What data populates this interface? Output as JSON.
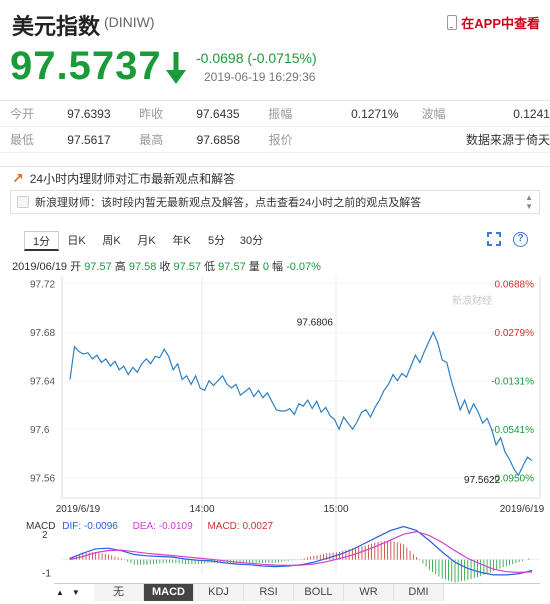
{
  "header": {
    "title": "美元指数",
    "code": "(DINIW)",
    "app_link": "在APP中查看"
  },
  "quote": {
    "price": "97.5737",
    "change": "-0.0698 (-0.0715%)",
    "time": "2019-06-19 16:29:36",
    "color_down": "#1a9b3a"
  },
  "stats": {
    "row1": [
      {
        "label": "今开",
        "value": "97.6393"
      },
      {
        "label": "昨收",
        "value": "97.6435"
      },
      {
        "label": "振幅",
        "value": "0.1271%"
      },
      {
        "label": "波幅",
        "value": "0.1241"
      }
    ],
    "row2": [
      {
        "label": "最低",
        "value": "97.5617"
      },
      {
        "label": "最高",
        "value": "97.6858"
      },
      {
        "label": "报价",
        "value": "数据来源于倚天"
      }
    ]
  },
  "news": {
    "heading": "24小时内理财师对汇市最新观点和解答",
    "message": "新浪理财师：该时段内暂无最新观点及解答，点击查看24小时之前的观点及解答"
  },
  "tabs": [
    "1分",
    "日K",
    "周K",
    "月K",
    "年K",
    "5分",
    "30分"
  ],
  "active_tab": "1分",
  "ohlc": {
    "date": "2019/06/19",
    "open_label": "开",
    "open": "97.57",
    "high_label": "高",
    "high": "97.58",
    "close_label": "收",
    "close": "97.57",
    "low_label": "低",
    "low": "97.57",
    "volume_label": "量",
    "volume": "0",
    "amp_label": "幅",
    "amp": "-0.07%"
  },
  "watermark": "新浪财经",
  "chart_data": {
    "type": "line",
    "y_ticks_left": [
      "97.72",
      "97.68",
      "97.64",
      "97.6",
      "97.56"
    ],
    "y_ticks_right": [
      "0.0688%",
      "0.0279%",
      "-0.0131%",
      "-0.0541%",
      "-0.0950%"
    ],
    "x_ticks": [
      "2019/6/19",
      "14:00",
      "15:00",
      "2019/6/19"
    ],
    "ylim": [
      97.5515,
      97.7181
    ],
    "annotations": [
      {
        "label": "97.6806",
        "x": 0.556,
        "y": 97.6806
      },
      {
        "label": "97.5622",
        "x": 0.918,
        "y": 97.5622
      }
    ],
    "values": [
      97.641,
      97.668,
      97.664,
      97.662,
      97.663,
      97.658,
      97.661,
      97.655,
      97.658,
      97.652,
      97.656,
      97.649,
      97.652,
      97.645,
      97.651,
      97.647,
      97.654,
      97.658,
      97.654,
      97.66,
      97.659,
      97.666,
      97.66,
      97.649,
      97.654,
      97.641,
      97.644,
      97.637,
      97.644,
      97.634,
      97.632,
      97.64,
      97.636,
      97.64,
      97.644,
      97.637,
      97.634,
      97.637,
      97.628,
      97.631,
      97.634,
      97.627,
      97.632,
      97.626,
      97.63,
      97.623,
      97.616,
      97.615,
      97.615,
      97.617,
      97.612,
      97.621,
      97.619,
      97.624,
      97.617,
      97.623,
      97.614,
      97.618,
      97.611,
      97.608,
      97.6,
      97.61,
      97.605,
      97.6,
      97.606,
      97.614,
      97.616,
      97.61,
      97.618,
      97.624,
      97.632,
      97.637,
      97.645,
      97.64,
      97.646,
      97.643,
      97.652,
      97.661,
      97.655,
      97.664,
      97.672,
      97.68,
      97.671,
      97.657,
      97.655,
      97.64,
      97.628,
      97.616,
      97.624,
      97.613,
      97.621,
      97.614,
      97.605,
      97.609,
      97.6,
      97.587,
      97.593,
      97.581,
      97.575,
      97.567,
      97.562,
      97.57,
      97.577,
      97.574
    ],
    "macd": {
      "dif_label": "DIF:",
      "dif": "-0.0096",
      "dea_label": "DEA:",
      "dea": "-0.0109",
      "macd_label": "MACD:",
      "macd": "0.0027",
      "y_ticks": [
        "2",
        "-1"
      ],
      "color_dif": "#2a5de0",
      "color_dea": "#d040d0",
      "color_macd": "#d03030",
      "dif_values": [
        0.1,
        0.5,
        0.85,
        0.9,
        0.7,
        0.4,
        0.3,
        0.25,
        0.2,
        0.05,
        -0.05,
        -0.1,
        -0.25,
        -0.35,
        -0.4,
        -0.5,
        -0.55,
        -0.5,
        -0.4,
        -0.2,
        0.1,
        0.4,
        0.8,
        1.3,
        1.8,
        2.3,
        2.6,
        2.3,
        1.5,
        0.6,
        -0.2,
        -0.7,
        -1.0,
        -1.2,
        -1.2,
        -1.1,
        -0.85
      ],
      "dea_values": [
        0.0,
        0.25,
        0.55,
        0.72,
        0.75,
        0.62,
        0.5,
        0.4,
        0.32,
        0.22,
        0.12,
        0.03,
        -0.08,
        -0.2,
        -0.28,
        -0.37,
        -0.43,
        -0.45,
        -0.43,
        -0.34,
        -0.16,
        0.08,
        0.36,
        0.72,
        1.1,
        1.55,
        2.0,
        2.2,
        1.9,
        1.35,
        0.7,
        0.1,
        -0.35,
        -0.75,
        -0.95,
        -1.0,
        -0.96
      ],
      "bar_values": [
        0.2,
        0.5,
        0.6,
        0.4,
        0.1,
        -0.4,
        -0.4,
        -0.3,
        -0.25,
        -0.35,
        -0.35,
        -0.25,
        -0.3,
        -0.3,
        -0.25,
        -0.25,
        -0.25,
        -0.1,
        0.05,
        0.3,
        0.5,
        0.6,
        0.9,
        1.1,
        1.4,
        1.5,
        1.2,
        0.2,
        -0.8,
        -1.5,
        -1.8,
        -1.6,
        -1.3,
        -0.9,
        -0.5,
        -0.2,
        0.2
      ]
    }
  },
  "indicators": [
    "无",
    "MACD",
    "KDJ",
    "RSI",
    "BOLL",
    "WR",
    "DMI"
  ],
  "active_indicator": "MACD"
}
